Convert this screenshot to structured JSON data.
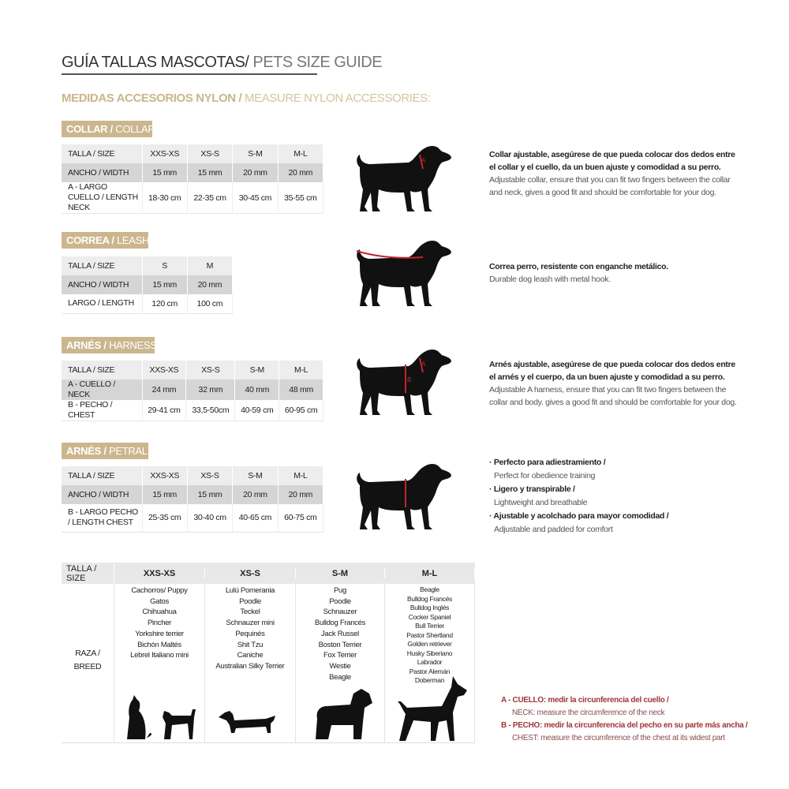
{
  "title": {
    "es": "GUÍA TALLAS MASCOTAS/",
    "en": " PETS SIZE GUIDE"
  },
  "subtitle": {
    "es": "MEDIDAS ACCESORIOS NYLON /",
    "en": " MEASURE NYLON ACCESSORIES:"
  },
  "colors": {
    "gold": "#cbb68e",
    "red": "#c0262d"
  },
  "collar": {
    "badge_es": "COLLAR /",
    "badge_en": " COLLAR",
    "rows": [
      [
        "TALLA / SIZE",
        "XXS-XS",
        "XS-S",
        "S-M",
        "M-L"
      ],
      [
        "ANCHO / WIDTH",
        "15 mm",
        "15 mm",
        "20 mm",
        "20 mm"
      ],
      [
        "A - LARGO CUELLO / LENGTH NECK",
        "18-30 cm",
        "22-35 cm",
        "30-45 cm",
        "35-55 cm"
      ]
    ],
    "desc_es": "Collar ajustable, asegúrese de que pueda colocar dos dedos entre el collar y el cuello, da un buen ajuste y comodidad a su perro.",
    "desc_en": "Adjustable collar, ensure that you can fit two fingers between the collar and neck, gives a good fit and should be comfortable for your dog."
  },
  "leash": {
    "badge_es": "CORREA /",
    "badge_en": " LEASH",
    "rows": [
      [
        "TALLA / SIZE",
        "S",
        "M"
      ],
      [
        "ANCHO / WIDTH",
        "15 mm",
        "20 mm"
      ],
      [
        "LARGO / LENGTH",
        "120 cm",
        "100 cm"
      ]
    ],
    "desc_es": "Correa perro, resistente con enganche metálico.",
    "desc_en": "Durable dog leash with metal hook."
  },
  "harness": {
    "badge_es": "ARNÉS /",
    "badge_en": " HARNESS",
    "rows": [
      [
        "TALLA / SIZE",
        "XXS-XS",
        "XS-S",
        "S-M",
        "M-L"
      ],
      [
        "A - CUELLO / NECK",
        "24 mm",
        "32 mm",
        "40 mm",
        "48 mm"
      ],
      [
        "B - PECHO / CHEST",
        "29-41 cm",
        "33,5-50cm",
        "40-59 cm",
        "60-95 cm"
      ]
    ],
    "desc_es": "Arnés ajustable, asegúrese de que pueda colocar dos dedos entre el arnés y el cuerpo, da un buen ajuste y comodidad a su perro.",
    "desc_en": "Adjustable A harness, ensure that you can fit two fingers between the collar and body. gives a good fit and should be comfortable for your dog."
  },
  "petral": {
    "badge_es": "ARNÉS /",
    "badge_en": " PETRAL",
    "rows": [
      [
        "TALLA / SIZE",
        "XXS-XS",
        "XS-S",
        "S-M",
        "M-L"
      ],
      [
        "ANCHO / WIDTH",
        "15 mm",
        "15 mm",
        "20 mm",
        "20 mm"
      ],
      [
        "B - LARGO PECHO / LENGTH CHEST",
        "25-35 cm",
        "30-40 cm",
        "40-65 cm",
        "60-75 cm"
      ]
    ],
    "bullets": [
      {
        "es": "· Perfecto para adiestramiento /",
        "en": "Perfect for obedience training"
      },
      {
        "es": "· Ligero y transpirable /",
        "en": "Lightweight and breathable"
      },
      {
        "es": "· Ajustable y acolchado para mayor comodidad /",
        "en": "Adjustable and padded for comfort"
      }
    ]
  },
  "breeds": {
    "header": "TALLA /  SIZE",
    "row_label_es": "RAZA /",
    "row_label_en": "BREED",
    "sizes": [
      "XXS-XS",
      "XS-S",
      "S-M",
      "M-L"
    ],
    "lists": [
      [
        "Cachorros/ Puppy",
        "Gatos",
        "Chihuahua",
        "Pincher",
        "Yorkshire terrier",
        "Bichón Maltés",
        "Lebrel Italiano mini"
      ],
      [
        "Lulú Pomerania",
        "Poodle",
        "Teckel",
        "Schnauzer mini",
        "Pequinés",
        "Shit Tzu",
        "Caniche",
        "Australian Silky Terrier"
      ],
      [
        "Pug",
        "Poodle",
        "Schnauzer",
        "Bulldog Francés",
        "Jack Russel",
        "Boston Terrier",
        "Fox Terrier",
        "Westie",
        "Beagle"
      ],
      [
        "Beagle",
        "Bulldog Francés",
        "Bulldog Inglés",
        "Cocker Spaniel",
        "Bull Terrier",
        "Pastor Shertland",
        "Golden retriever",
        "Husky Siberiano",
        "Labrador",
        "Pastor Alemán",
        "Doberman"
      ]
    ]
  },
  "notes": [
    {
      "es": "A - CUELLO: medir la circunferencia del cuello /",
      "en": "NECK: measure the circumference of the neck"
    },
    {
      "es": "B - PECHO: medir la circunferencia del pecho en su parte más ancha /",
      "en": "CHEST: measure the circumference of the chest at its widest part"
    }
  ]
}
